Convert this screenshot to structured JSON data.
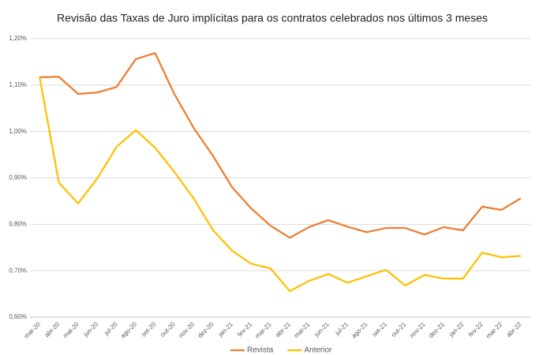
{
  "chart_data": {
    "type": "line",
    "title": "Revisão das Taxas de Juro implícitas para os contratos celebrados nos últimos 3 meses",
    "categories": [
      "mar-20",
      "abr-20",
      "mai-20",
      "jun-20",
      "jul-20",
      "ago-20",
      "set-20",
      "out-20",
      "nov-20",
      "dez-20",
      "jan-21",
      "fev-21",
      "mar-21",
      "abr-21",
      "mai-21",
      "jun-21",
      "jul-21",
      "ago-21",
      "set-21",
      "out-21",
      "nov-21",
      "dez-21",
      "jan-22",
      "fev-22",
      "mar-22",
      "abr-22"
    ],
    "series": [
      {
        "name": "Revista",
        "color": "#ed7d31",
        "values": [
          1.117,
          1.118,
          1.081,
          1.084,
          1.096,
          1.156,
          1.169,
          1.081,
          1.008,
          0.948,
          0.88,
          0.834,
          0.797,
          0.771,
          0.794,
          0.809,
          0.795,
          0.783,
          0.792,
          0.792,
          0.778,
          0.794,
          0.787,
          0.838,
          0.831,
          0.856
        ]
      },
      {
        "name": "Anterior",
        "color": "#ffc000",
        "values": [
          1.117,
          0.89,
          0.845,
          0.899,
          0.967,
          1.003,
          0.965,
          0.913,
          0.856,
          0.788,
          0.743,
          0.715,
          0.705,
          0.656,
          0.678,
          0.693,
          0.674,
          0.688,
          0.702,
          0.668,
          0.691,
          0.683,
          0.683,
          0.739,
          0.729,
          0.732
        ]
      }
    ],
    "ylim": [
      0.6,
      1.2
    ],
    "yticks": [
      {
        "value": 0.6,
        "label": "0,60%"
      },
      {
        "value": 0.7,
        "label": "0,70%"
      },
      {
        "value": 0.8,
        "label": "0,80%"
      },
      {
        "value": 0.9,
        "label": "0,90%"
      },
      {
        "value": 1.0,
        "label": "1,00%"
      },
      {
        "value": 1.1,
        "label": "1,10%"
      },
      {
        "value": 1.2,
        "label": "1,20%"
      }
    ],
    "grid": true,
    "legend": "bottom"
  }
}
